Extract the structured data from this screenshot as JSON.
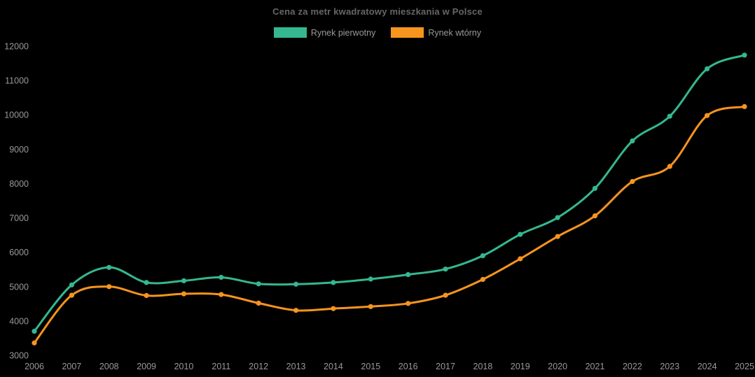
{
  "chart_data": {
    "type": "line",
    "title": "Cena za metr kwadratowy mieszkania w Polsce",
    "xlabel": "",
    "ylabel": "",
    "categories": [
      "2006",
      "2007",
      "2008",
      "2009",
      "2010",
      "2011",
      "2012",
      "2013",
      "2014",
      "2015",
      "2016",
      "2017",
      "2018",
      "2019",
      "2020",
      "2021",
      "2022",
      "2023",
      "2024",
      "2025"
    ],
    "series": [
      {
        "name": "Rynek pierwotny",
        "color": "#35b790",
        "values": [
          3700,
          5050,
          5560,
          5120,
          5170,
          5270,
          5080,
          5070,
          5120,
          5220,
          5350,
          5510,
          5900,
          6520,
          7010,
          7860,
          9240,
          9960,
          11340,
          11740
        ]
      },
      {
        "name": "Rynek wtórny",
        "color": "#f7941e",
        "values": [
          3360,
          4750,
          5000,
          4740,
          4790,
          4770,
          4520,
          4310,
          4360,
          4420,
          4510,
          4750,
          5210,
          5810,
          6460,
          7060,
          8060,
          8500,
          9980,
          10240
        ]
      }
    ],
    "ylim": [
      3000,
      12000
    ],
    "y_ticks": [
      "3000",
      "4000",
      "5000",
      "6000",
      "7000",
      "8000",
      "9000",
      "10000",
      "11000",
      "12000"
    ],
    "grid": false,
    "legend_position": "top",
    "background_color": "#000000",
    "axis_label_color": "#999999",
    "title_color": "#666666"
  }
}
